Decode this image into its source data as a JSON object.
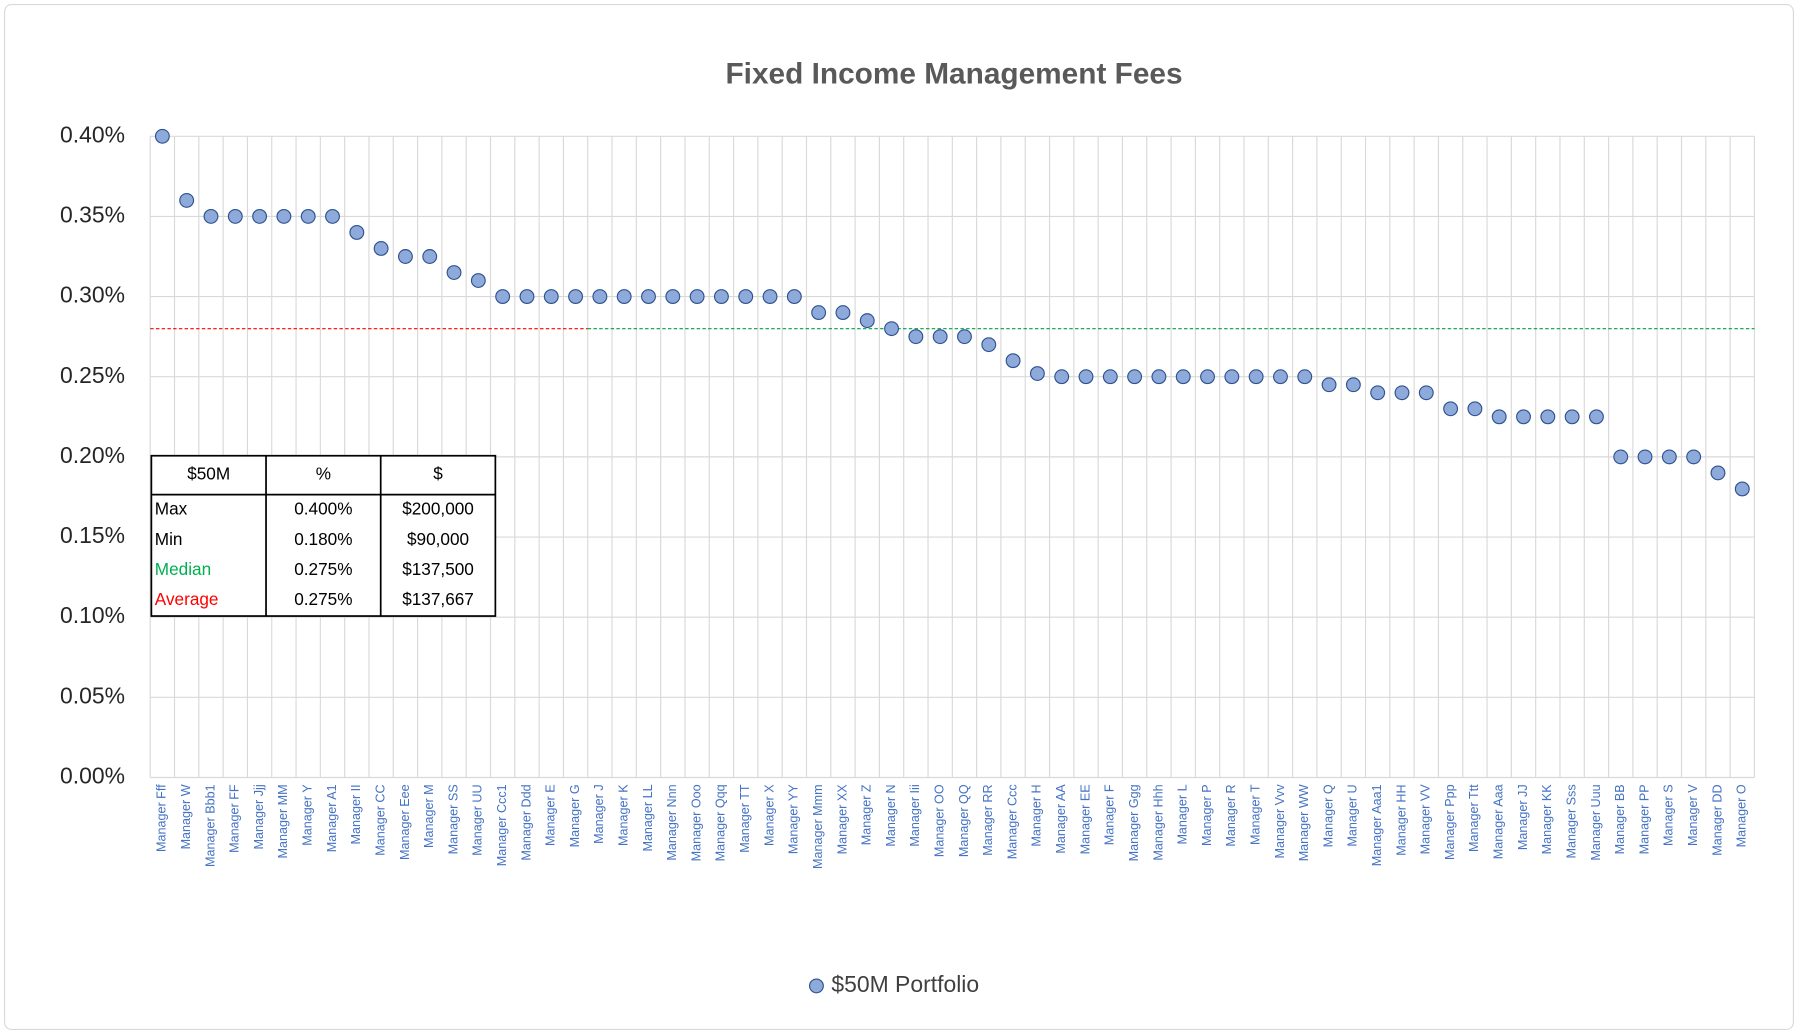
{
  "chart_data": {
    "type": "scatter",
    "title": "Fixed Income Management Fees",
    "categories": [
      "Manager Fff",
      "Manager W",
      "Manager Bbb1",
      "Manager FF",
      "Manager Jjj",
      "Manager MM",
      "Manager Y",
      "Manager A1",
      "Manager II",
      "Manager CC",
      "Manager Eee",
      "Manager M",
      "Manager SS",
      "Manager UU",
      "Manager Ccc1",
      "Manager Ddd",
      "Manager E",
      "Manager G",
      "Manager J",
      "Manager K",
      "Manager LL",
      "Manager Nnn",
      "Manager Ooo",
      "Manager Qqq",
      "Manager TT",
      "Manager X",
      "Manager YY",
      "Manager Mmm",
      "Manager XX",
      "Manager Z",
      "Manager N",
      "Manager Iii",
      "Manager OO",
      "Manager QQ",
      "Manager RR",
      "Manager Ccc",
      "Manager H",
      "Manager AA",
      "Manager EE",
      "Manager F",
      "Manager Ggg",
      "Manager Hhh",
      "Manager L",
      "Manager P",
      "Manager R",
      "Manager T",
      "Manager Vvv",
      "Manager WW",
      "Manager Q",
      "Manager U",
      "Manager Aaa1",
      "Manager HH",
      "Manager VV",
      "Manager Ppp",
      "Manager Ttt",
      "Manager Aaa",
      "Manager JJ",
      "Manager KK",
      "Manager Sss",
      "Manager Uuu",
      "Manager BB",
      "Manager PP",
      "Manager S",
      "Manager V",
      "Manager DD",
      "Manager O"
    ],
    "series": [
      {
        "name": "$50M Portfolio",
        "color": "#8eaadb",
        "edge_color": "#2f528f",
        "values": [
          0.4,
          0.36,
          0.35,
          0.35,
          0.35,
          0.35,
          0.35,
          0.35,
          0.34,
          0.33,
          0.325,
          0.325,
          0.315,
          0.31,
          0.3,
          0.3,
          0.3,
          0.3,
          0.3,
          0.3,
          0.3,
          0.3,
          0.3,
          0.3,
          0.3,
          0.3,
          0.3,
          0.29,
          0.29,
          0.285,
          0.28,
          0.275,
          0.275,
          0.275,
          0.27,
          0.26,
          0.252,
          0.25,
          0.25,
          0.25,
          0.25,
          0.25,
          0.25,
          0.25,
          0.25,
          0.25,
          0.25,
          0.25,
          0.245,
          0.245,
          0.24,
          0.24,
          0.24,
          0.23,
          0.23,
          0.225,
          0.225,
          0.225,
          0.225,
          0.225,
          0.2,
          0.2,
          0.2,
          0.2,
          0.19,
          0.18
        ]
      }
    ],
    "ylim": [
      0,
      0.4
    ],
    "yticks": [
      {
        "value": 0,
        "label": "0.00%"
      },
      {
        "value": 0.05,
        "label": "0.05%"
      },
      {
        "value": 0.1,
        "label": "0.10%"
      },
      {
        "value": 0.15,
        "label": "0.15%"
      },
      {
        "value": 0.2,
        "label": "0.20%"
      },
      {
        "value": 0.25,
        "label": "0.25%"
      },
      {
        "value": 0.3,
        "label": "0.30%"
      },
      {
        "value": 0.35,
        "label": "0.35%"
      },
      {
        "value": 0.4,
        "label": "0.40%"
      }
    ],
    "grid": true,
    "legend": "bottom",
    "reference_lines": [
      {
        "value": 0.28,
        "color": "#ff0000"
      },
      {
        "value": 0.28,
        "color": "#00a040"
      }
    ],
    "table": {
      "header": [
        "$50M",
        "%",
        "$"
      ],
      "rows": [
        {
          "label": "Max",
          "color": "#000000",
          "cells": [
            "0.400%",
            "$200,000"
          ]
        },
        {
          "label": "Min",
          "color": "#000000",
          "cells": [
            "0.180%",
            "$90,000"
          ]
        },
        {
          "label": "Median",
          "color": "#00b050",
          "cells": [
            "0.275%",
            "$137,500"
          ]
        },
        {
          "label": "Average",
          "color": "#ff0000",
          "cells": [
            "0.275%",
            "$137,667"
          ]
        }
      ]
    }
  }
}
